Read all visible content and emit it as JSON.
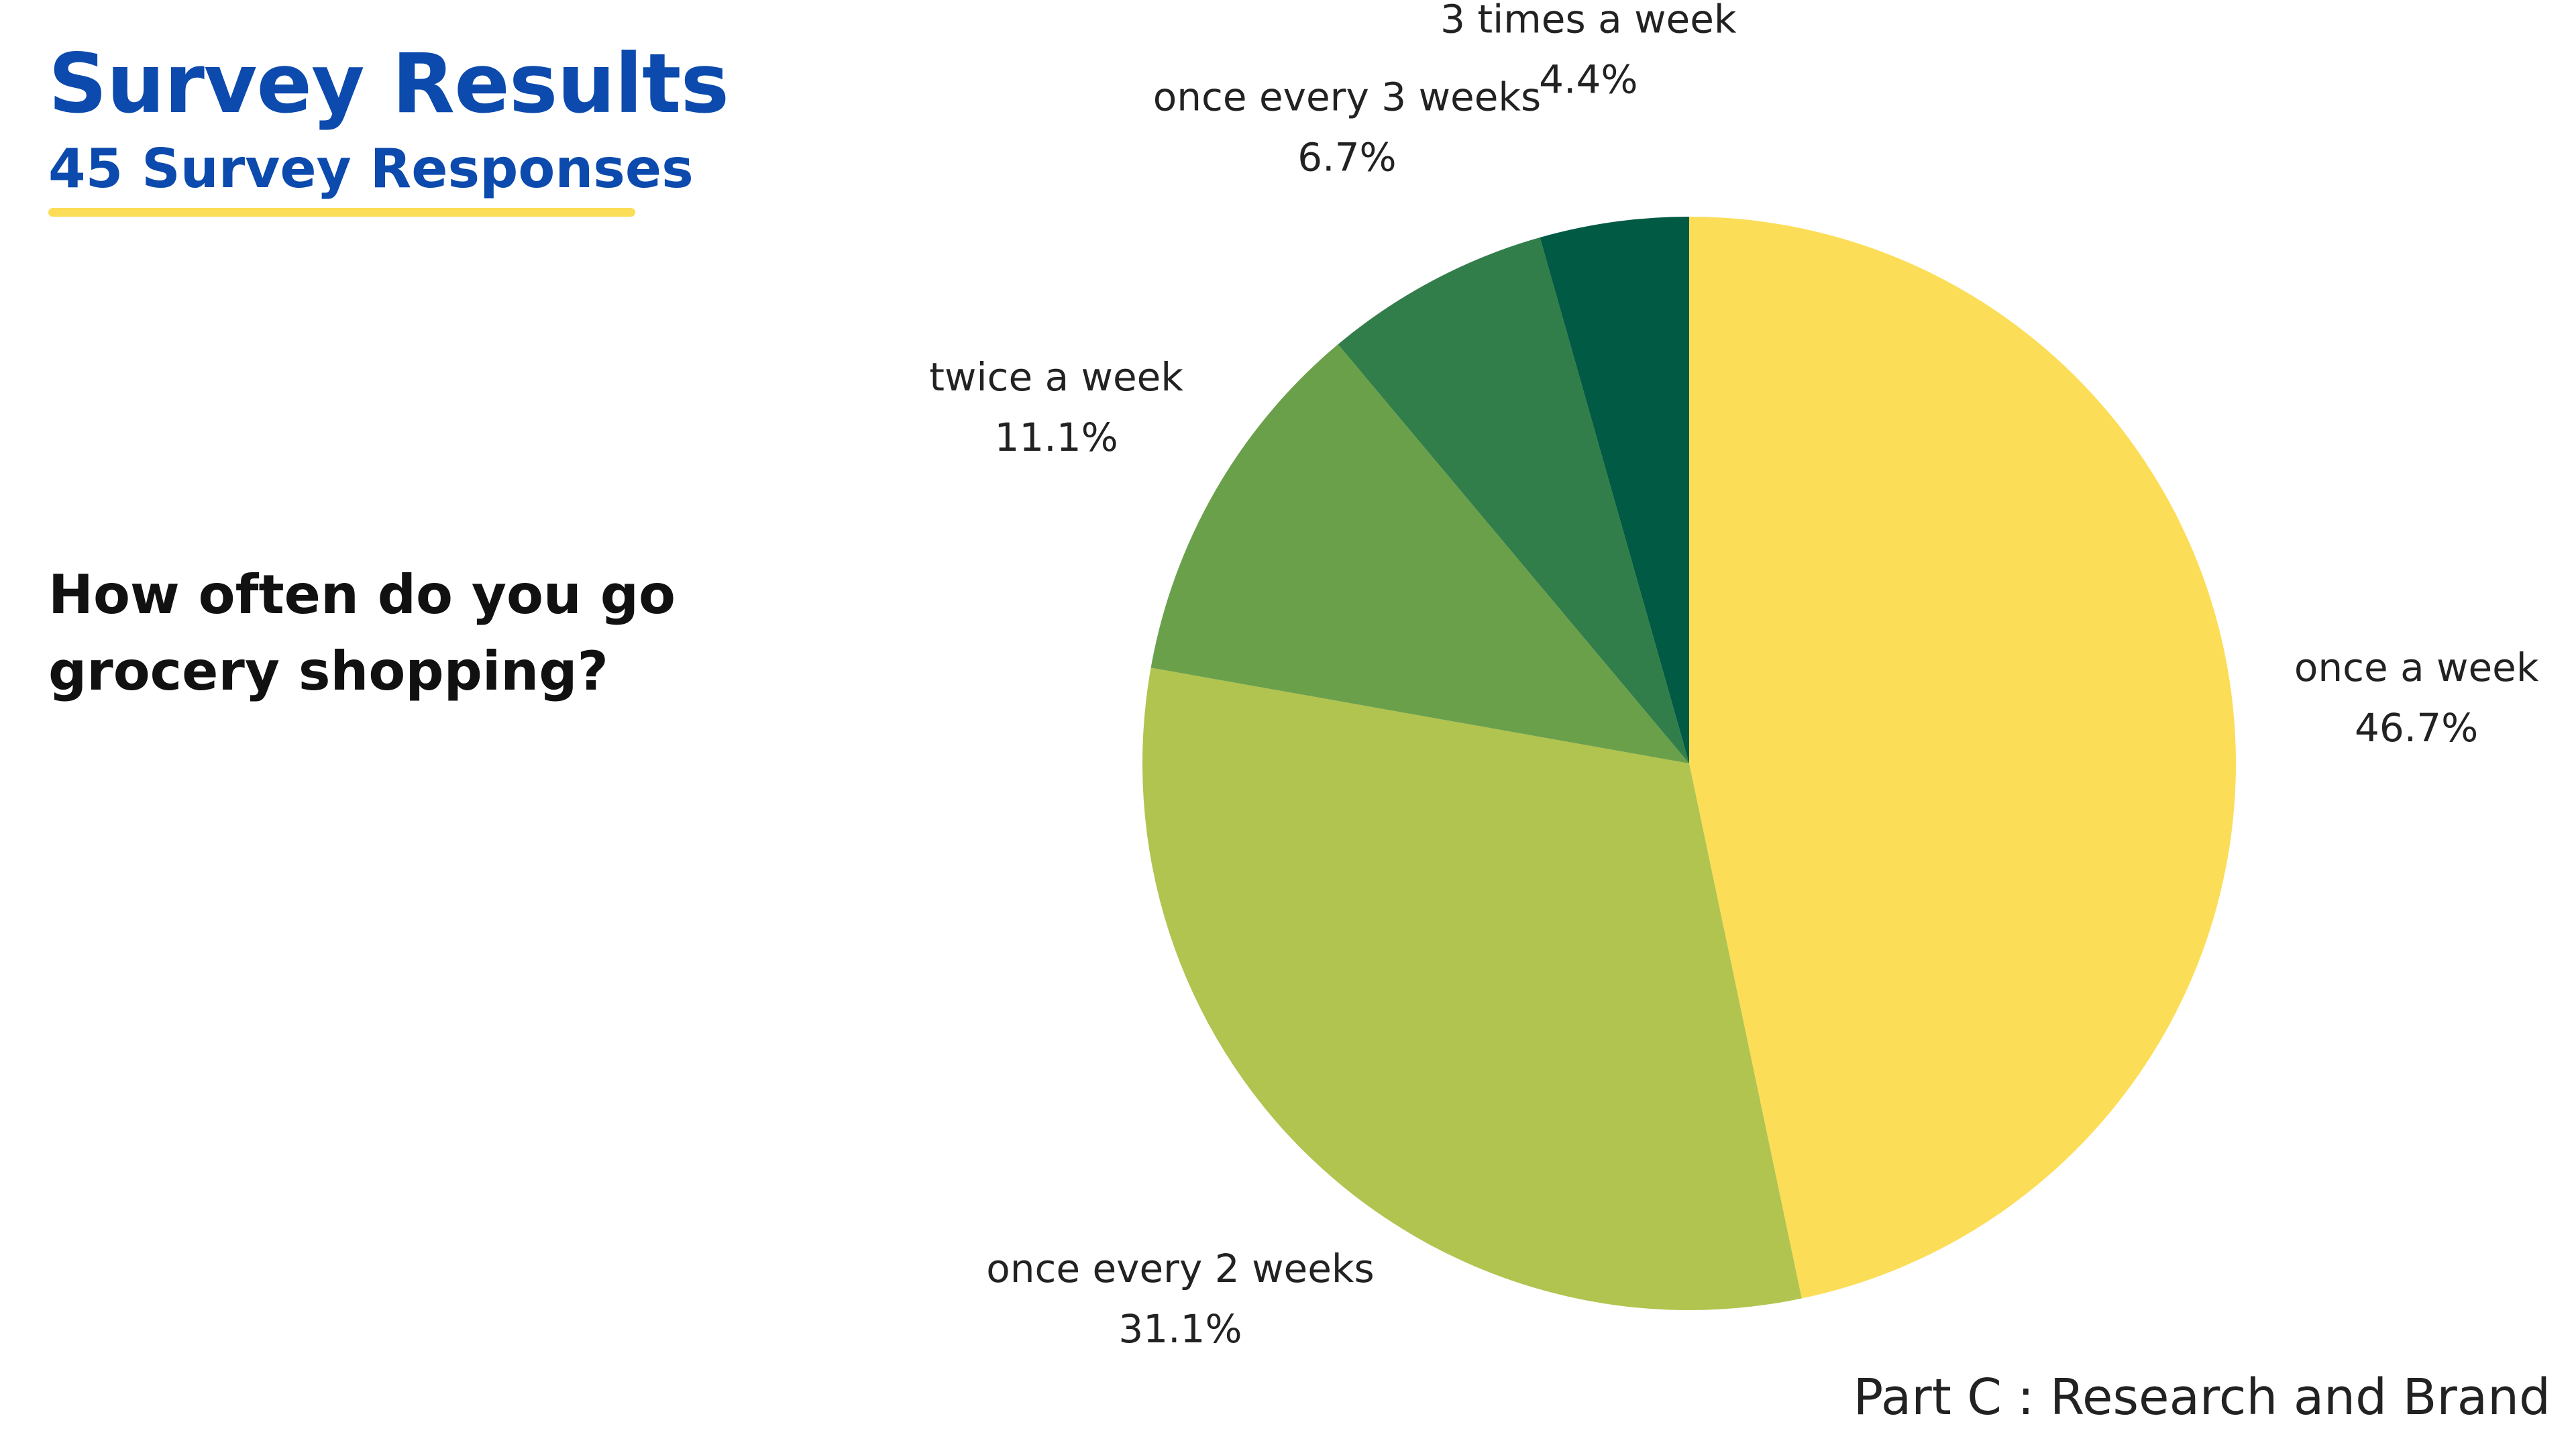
{
  "header": {
    "title": "Survey Results",
    "subtitle": "45 Survey Responses"
  },
  "question": "How often do you go grocery shopping?",
  "footer": "Part C : Research and Brand",
  "colors": {
    "title": "#0c4aad",
    "underline": "#fcdd57"
  },
  "chart_data": {
    "type": "pie",
    "title": "",
    "start": "12 o'clock",
    "direction": "clockwise",
    "slices": [
      {
        "label": "once a week",
        "value": 46.7,
        "value_label": "46.7%",
        "color": "#fcdd57"
      },
      {
        "label": "once every 2 weeks",
        "value": 31.1,
        "value_label": "31.1%",
        "color": "#b0c44f"
      },
      {
        "label": "twice a week",
        "value": 11.1,
        "value_label": "11.1%",
        "color": "#6ba04b"
      },
      {
        "label": "once every 3 weeks",
        "value": 6.7,
        "value_label": "6.7%",
        "color": "#327e4b"
      },
      {
        "label": "3 times a week",
        "value": 4.4,
        "value_label": "4.4%",
        "color": "#015a43"
      }
    ]
  }
}
